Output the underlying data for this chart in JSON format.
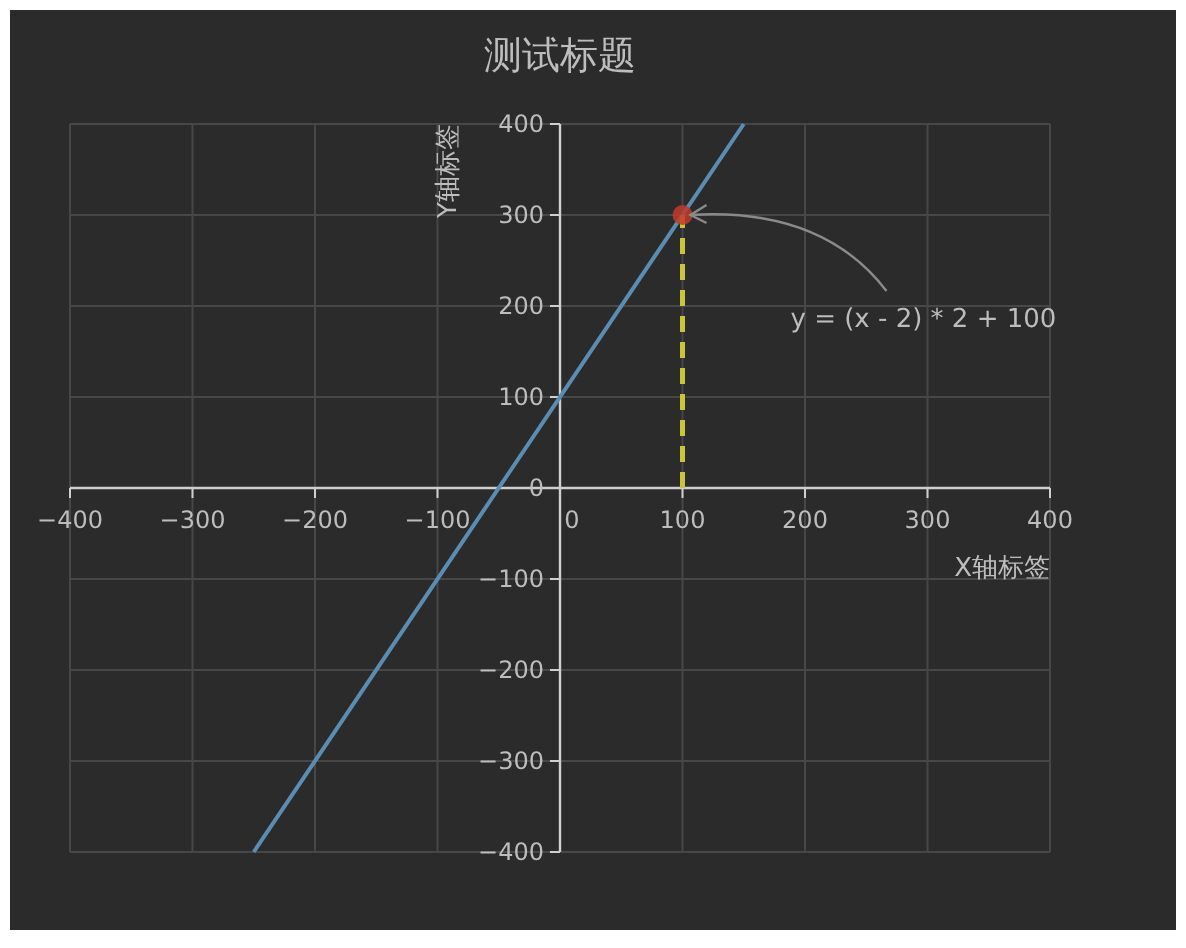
{
  "chart_data": {
    "type": "line",
    "title": "测试标题",
    "xlabel": "X轴标签",
    "ylabel": "Y轴标签",
    "xlim": [
      -400,
      400
    ],
    "ylim": [
      -400,
      400
    ],
    "xticks": [
      {
        "value": -400,
        "label": "−400"
      },
      {
        "value": -300,
        "label": "−300"
      },
      {
        "value": -200,
        "label": "−200"
      },
      {
        "value": -100,
        "label": "−100"
      },
      0,
      100,
      200,
      300,
      400
    ],
    "yticks": [
      {
        "value": -400,
        "label": "−400"
      },
      {
        "value": -300,
        "label": "−300"
      },
      {
        "value": -200,
        "label": "−200"
      },
      {
        "value": -100,
        "label": "−100"
      },
      0,
      100,
      200,
      300,
      400
    ],
    "grid": true,
    "series": [
      {
        "color": "#5b8db3",
        "x": [
          -250,
          150
        ],
        "values": [
          -400,
          400
        ]
      },
      {
        "type": "line",
        "color": "#c8c43c",
        "line_style": "dashed",
        "x": [
          100,
          100
        ],
        "values": [
          0,
          300
        ]
      },
      {
        "type": "scatter",
        "color": "#c0392b",
        "marker": "circle",
        "x": [
          100
        ],
        "values": [
          300
        ]
      }
    ],
    "annotations": [
      {
        "text": "y = (x - 2) * 2 + 100",
        "x": 100,
        "y": 300
      }
    ]
  }
}
